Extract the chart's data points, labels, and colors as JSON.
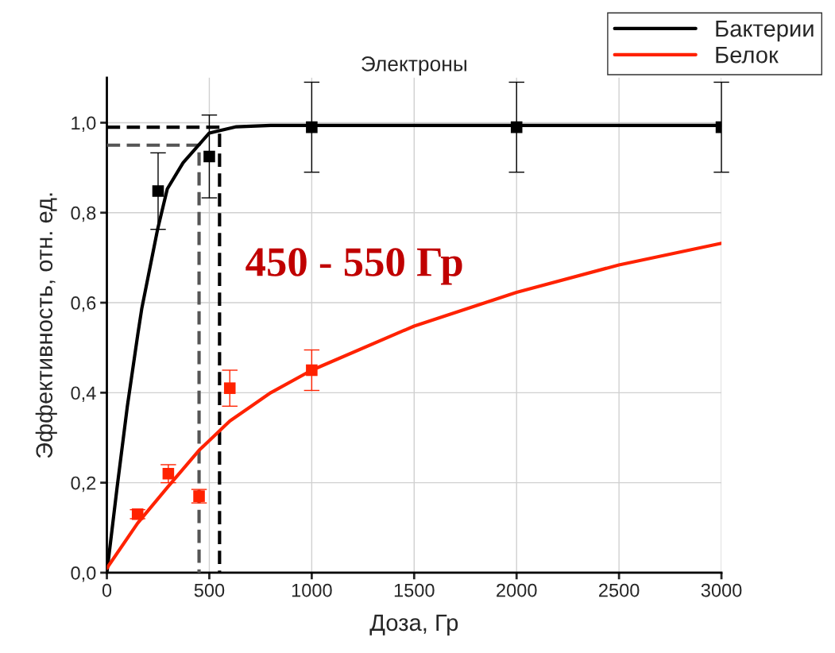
{
  "chart_data": {
    "type": "line",
    "title": "Электроны",
    "xlabel": "Доза, Гр",
    "ylabel": "Эффективность, отн. ед.",
    "xlim": [
      0,
      3000
    ],
    "xticks": [
      0,
      500,
      1000,
      1500,
      2000,
      2500,
      3000
    ],
    "ylim": [
      0,
      1.1
    ],
    "yticks": [
      {
        "value": 0,
        "label": "0,0"
      },
      {
        "value": 0.2,
        "label": "0,2"
      },
      {
        "value": 0.4,
        "label": "0,4"
      },
      {
        "value": 0.6,
        "label": "0,6"
      },
      {
        "value": 0.8,
        "label": "0,8"
      },
      {
        "value": 1.0,
        "label": "1,0"
      }
    ],
    "grid": true,
    "legend": "top right",
    "annotations": [
      "450 - 550 Гр"
    ],
    "series": [
      {
        "line_style": "dashed",
        "marker": "none",
        "color": "#555555",
        "x": [
          0,
          450,
          450
        ],
        "values": [
          0.95,
          0.95,
          0
        ]
      },
      {
        "line_style": "dashed",
        "marker": "none",
        "color": "#000000",
        "x": [
          0,
          550,
          550
        ],
        "values": [
          0.99,
          0.99,
          0
        ]
      },
      {
        "name": "Бактерии",
        "marker": "none",
        "line_style": "solid",
        "color": "#000000",
        "x": [
          0,
          50,
          100,
          151,
          170,
          248,
          295,
          372,
          500,
          632,
          800,
          1000,
          3000
        ],
        "values": [
          0,
          0.19,
          0.37,
          0.53,
          0.586,
          0.764,
          0.853,
          0.911,
          0.977,
          0.991,
          0.994,
          0.994,
          0.994
        ]
      },
      {
        "name": "Белок",
        "marker": "none",
        "line_style": "solid",
        "color": "#ff2200",
        "x": [
          0,
          150,
          300,
          450,
          600,
          800,
          1000,
          1500,
          2000,
          2500,
          3000
        ],
        "values": [
          0.01,
          0.11,
          0.192,
          0.272,
          0.337,
          0.4,
          0.45,
          0.548,
          0.623,
          0.684,
          0.732
        ]
      },
      {
        "type": "scatter",
        "marker": "square",
        "color": "#000000",
        "x": [
          250,
          500,
          1000,
          2000,
          3000
        ],
        "values": [
          0.848,
          0.925,
          0.99,
          0.99,
          0.99
        ],
        "errors": [
          0.085,
          0.092,
          0.1,
          0.1,
          0.1
        ]
      },
      {
        "type": "scatter",
        "marker": "square",
        "color": "#ff2200",
        "x": [
          150,
          300,
          450,
          600,
          1000
        ],
        "values": [
          0.13,
          0.22,
          0.17,
          0.41,
          0.45
        ],
        "errors": [
          0.01,
          0.02,
          0.015,
          0.04,
          0.045
        ]
      }
    ]
  }
}
